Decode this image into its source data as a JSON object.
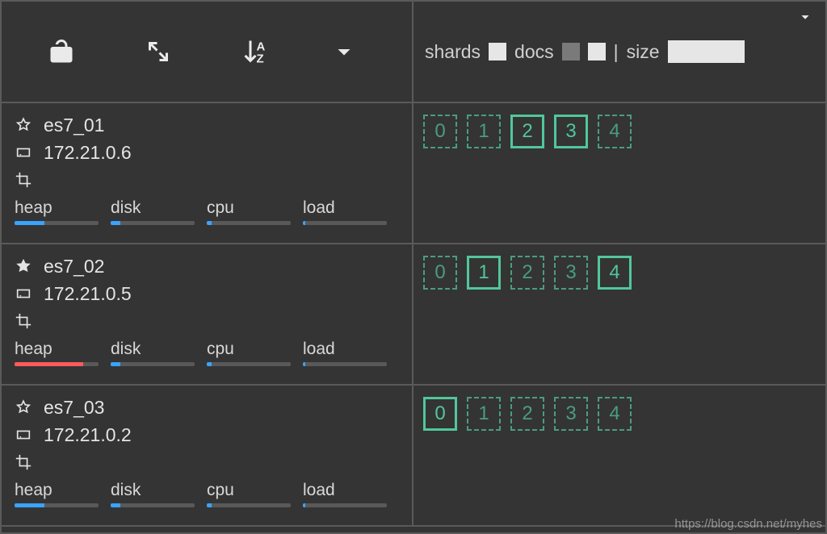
{
  "colors": {
    "shard_green": "#51c79c",
    "shard_green_dim": "#4a9d7e",
    "bar_blue": "#3aa3ff",
    "bar_red": "#ff5a5a",
    "bar_track": "#595959"
  },
  "header": {
    "right_labels": {
      "shards": "shards",
      "docs": "docs",
      "size": "size"
    }
  },
  "metric_labels": {
    "heap": "heap",
    "disk": "disk",
    "cpu": "cpu",
    "load": "load"
  },
  "nodes": [
    {
      "name": "es7_01",
      "ip": "172.21.0.6",
      "master": false,
      "metrics": {
        "heap": {
          "pct": 36,
          "color": "#3aa3ff"
        },
        "disk": {
          "pct": 12,
          "color": "#3aa3ff"
        },
        "cpu": {
          "pct": 6,
          "color": "#3aa3ff"
        },
        "load": {
          "pct": 3,
          "color": "#3aa3ff"
        }
      },
      "shards": [
        {
          "id": "0",
          "type": "replica"
        },
        {
          "id": "1",
          "type": "replica"
        },
        {
          "id": "2",
          "type": "primary"
        },
        {
          "id": "3",
          "type": "primary"
        },
        {
          "id": "4",
          "type": "replica"
        }
      ]
    },
    {
      "name": "es7_02",
      "ip": "172.21.0.5",
      "master": true,
      "metrics": {
        "heap": {
          "pct": 82,
          "color": "#ff5a5a"
        },
        "disk": {
          "pct": 12,
          "color": "#3aa3ff"
        },
        "cpu": {
          "pct": 6,
          "color": "#3aa3ff"
        },
        "load": {
          "pct": 3,
          "color": "#3aa3ff"
        }
      },
      "shards": [
        {
          "id": "0",
          "type": "replica"
        },
        {
          "id": "1",
          "type": "primary"
        },
        {
          "id": "2",
          "type": "replica"
        },
        {
          "id": "3",
          "type": "replica"
        },
        {
          "id": "4",
          "type": "primary"
        }
      ]
    },
    {
      "name": "es7_03",
      "ip": "172.21.0.2",
      "master": false,
      "metrics": {
        "heap": {
          "pct": 36,
          "color": "#3aa3ff"
        },
        "disk": {
          "pct": 12,
          "color": "#3aa3ff"
        },
        "cpu": {
          "pct": 6,
          "color": "#3aa3ff"
        },
        "load": {
          "pct": 3,
          "color": "#3aa3ff"
        }
      },
      "shards": [
        {
          "id": "0",
          "type": "primary"
        },
        {
          "id": "1",
          "type": "replica"
        },
        {
          "id": "2",
          "type": "replica"
        },
        {
          "id": "3",
          "type": "replica"
        },
        {
          "id": "4",
          "type": "replica"
        }
      ]
    }
  ],
  "watermark": "https://blog.csdn.net/myhes"
}
